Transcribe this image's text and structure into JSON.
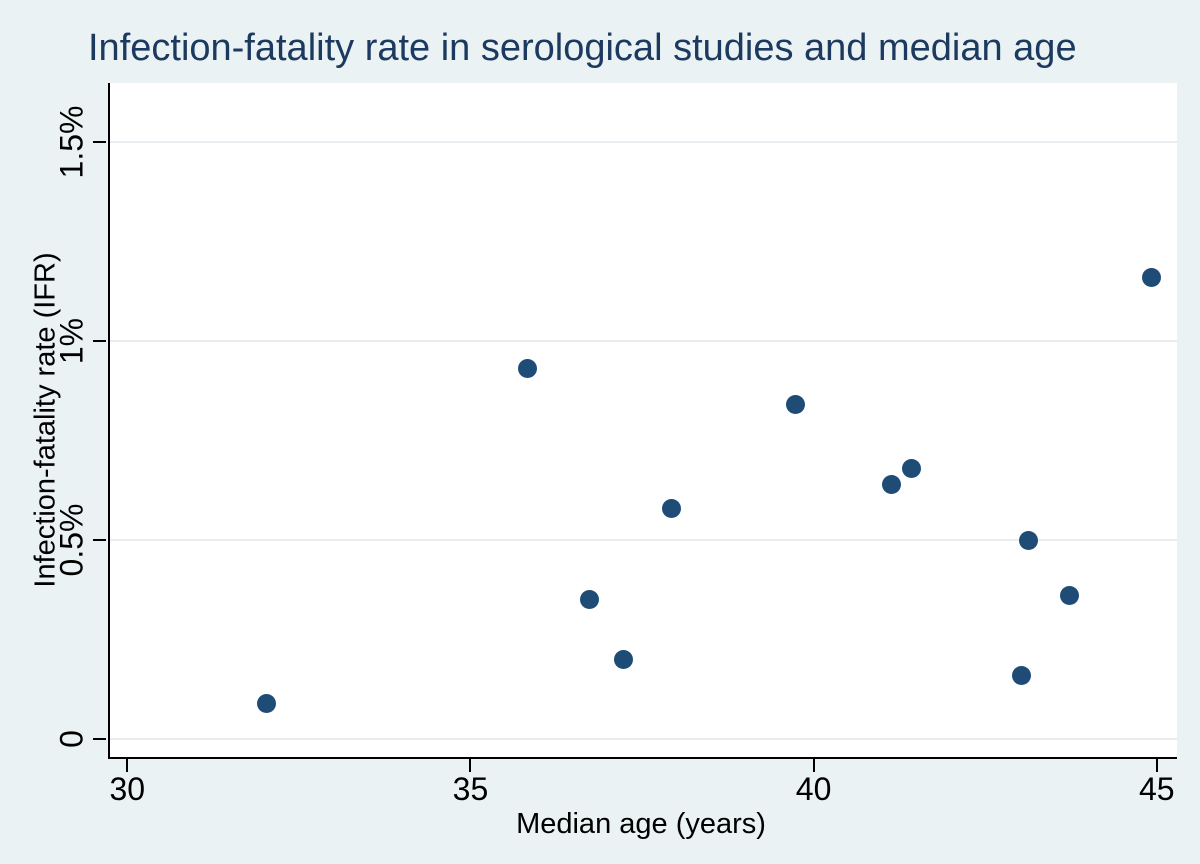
{
  "title": "Infection-fatality rate in serological studies and median age",
  "chart_data": {
    "type": "scatter",
    "title": "Infection-fatality rate in serological studies and median age",
    "xlabel": "Median age (years)",
    "ylabel": "Infection-fatality rate (IFR)",
    "xlim": [
      29.719,
      45.266
    ],
    "ylim_pct": [
      -0.0452,
      1.6483
    ],
    "grid": true,
    "legend": "none",
    "x_ticks": [
      {
        "value": 30,
        "label": "30"
      },
      {
        "value": 35,
        "label": "35"
      },
      {
        "value": 40,
        "label": "40"
      },
      {
        "value": 45,
        "label": "45"
      }
    ],
    "y_ticks": [
      {
        "value": 0,
        "label": "0"
      },
      {
        "value": 0.5,
        "label": "0.5%"
      },
      {
        "value": 1,
        "label": "1%"
      },
      {
        "value": 1.5,
        "label": "1.5%"
      }
    ],
    "points": [
      {
        "age": 32.0,
        "ifr_pct": 0.09
      },
      {
        "age": 35.8,
        "ifr_pct": 0.93
      },
      {
        "age": 36.7,
        "ifr_pct": 0.35
      },
      {
        "age": 37.2,
        "ifr_pct": 0.2
      },
      {
        "age": 37.9,
        "ifr_pct": 0.58
      },
      {
        "age": 39.7,
        "ifr_pct": 0.84
      },
      {
        "age": 41.1,
        "ifr_pct": 0.64
      },
      {
        "age": 41.4,
        "ifr_pct": 0.68
      },
      {
        "age": 43.0,
        "ifr_pct": 0.16
      },
      {
        "age": 43.1,
        "ifr_pct": 0.5
      },
      {
        "age": 43.7,
        "ifr_pct": 0.36
      },
      {
        "age": 44.9,
        "ifr_pct": 1.16
      }
    ],
    "colors": {
      "marker": "#1F4C77",
      "title": "#1C3A60",
      "background": "#EAF2F3",
      "plot_background": "#FFFFFF",
      "gridline": "#E7EDF1",
      "axis": "#000000"
    }
  }
}
